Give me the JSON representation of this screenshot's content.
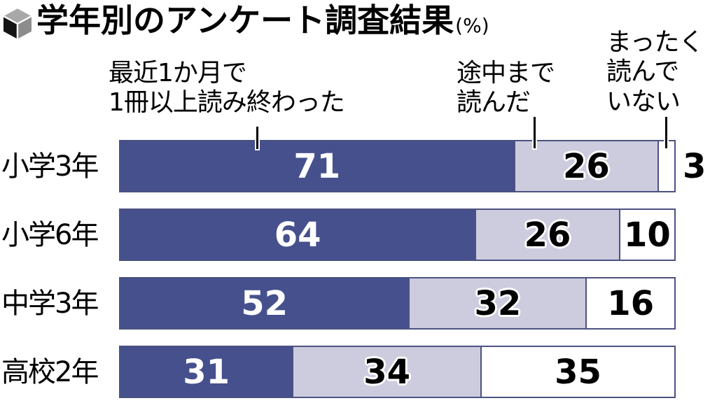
{
  "title": {
    "icon": "cube-bullet-icon",
    "text": "学年別のアンケート調査結果",
    "unit": "(%)"
  },
  "series_labels": {
    "finished": "最近1か月で\n1冊以上読み終わった",
    "partway": "途中まで\n読んだ",
    "none": "まったく\n読んで\nいない"
  },
  "colors": {
    "finished_segment": "#45508d",
    "partway_segment": "#cdccdf",
    "none_segment": "#ffffff",
    "bar_border": "#4c5280",
    "value_on_dark": "#ffffff",
    "value_on_light": "#000000"
  },
  "chart_data": {
    "type": "bar",
    "orientation": "horizontal",
    "stacked": true,
    "unit": "%",
    "title": "学年別のアンケート調査結果（%）",
    "categories": [
      "小学3年",
      "小学6年",
      "中学3年",
      "高校2年"
    ],
    "series": [
      {
        "name": "最近1か月で1冊以上読み終わった",
        "color": "#45508d",
        "values": [
          71,
          64,
          52,
          31
        ]
      },
      {
        "name": "途中まで読んだ",
        "color": "#cdccdf",
        "values": [
          26,
          26,
          32,
          34
        ]
      },
      {
        "name": "まったく読んでいない",
        "color": "#ffffff",
        "values": [
          3,
          10,
          16,
          35
        ]
      }
    ],
    "xlim": [
      0,
      100
    ],
    "legend_position": "top",
    "grid": false,
    "data_labels": true
  }
}
